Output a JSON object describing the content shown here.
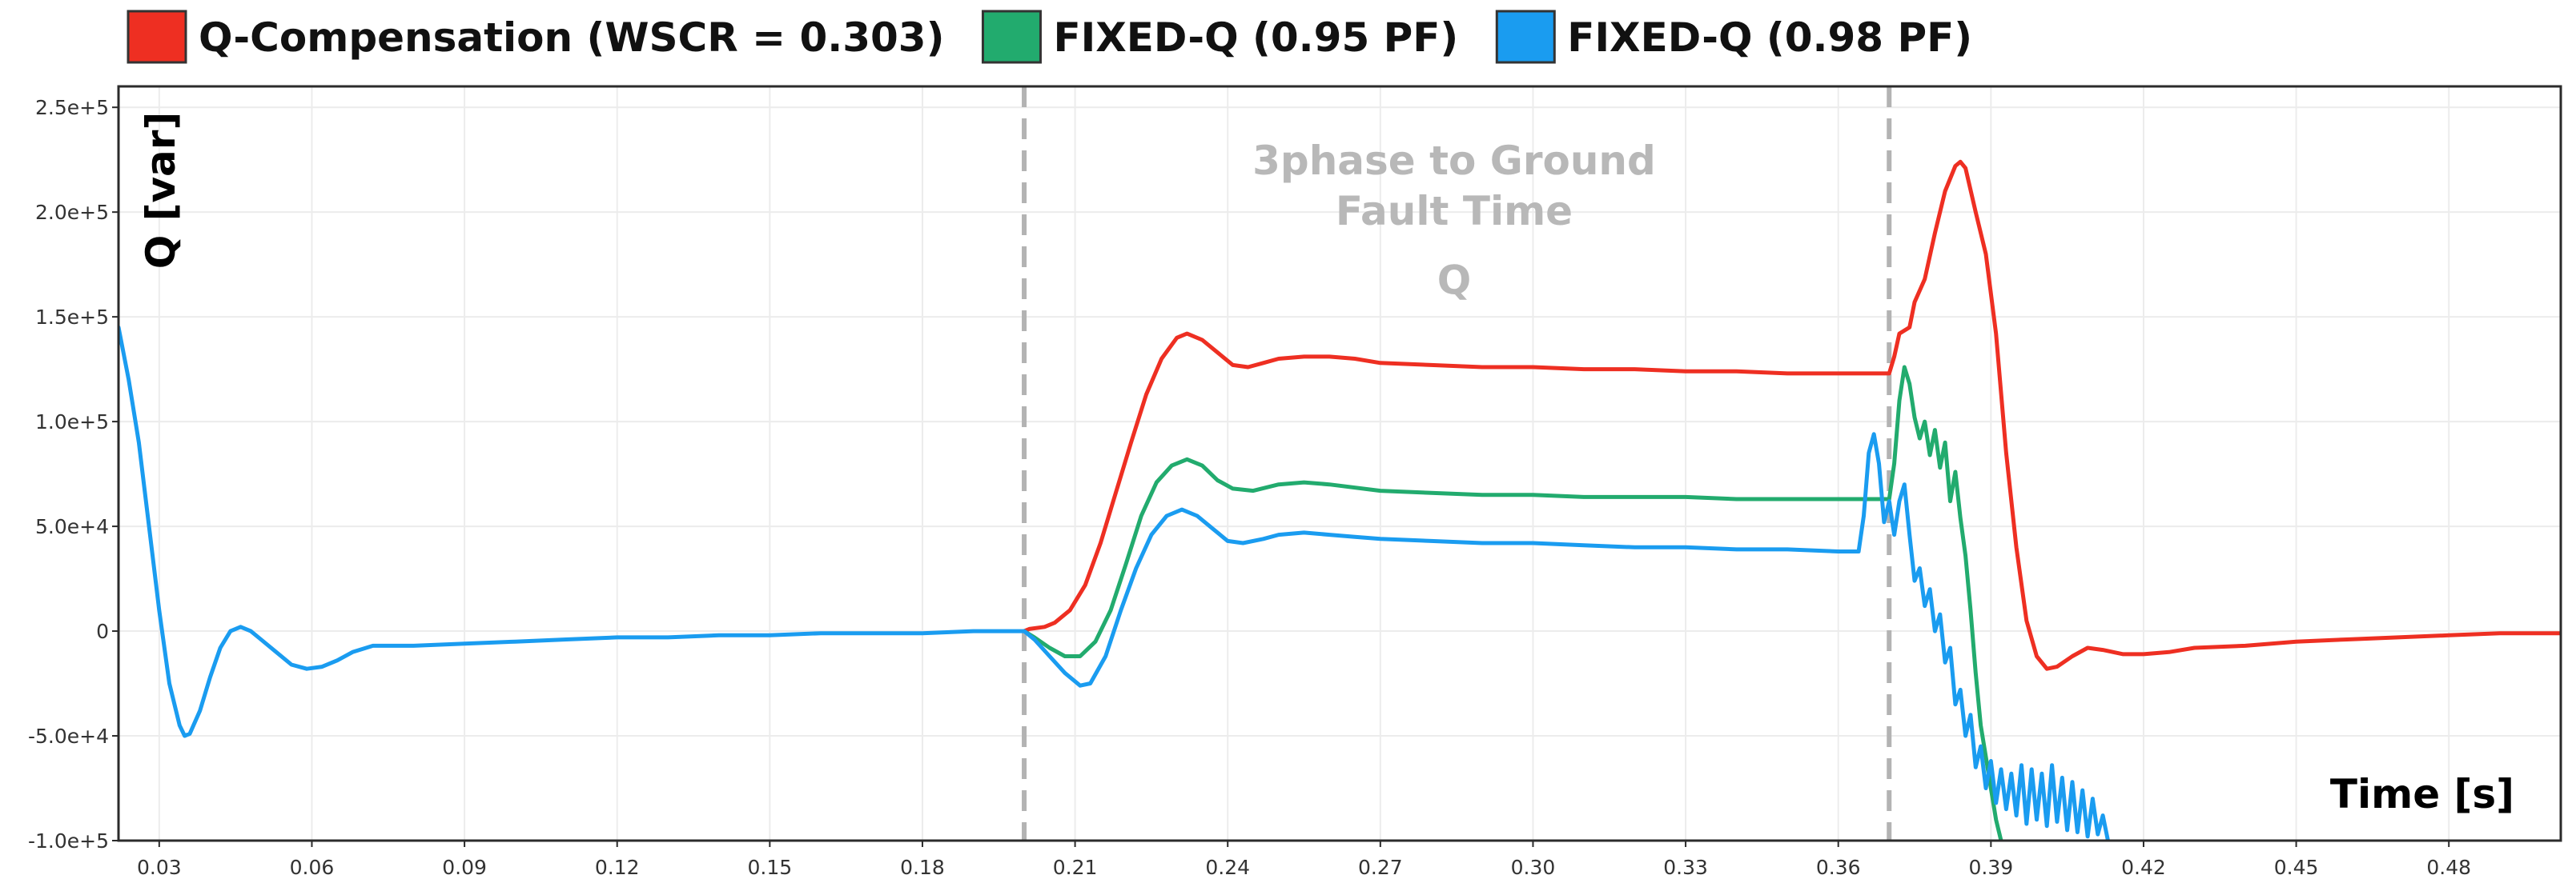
{
  "chart_data": {
    "type": "line",
    "title": "",
    "xlabel": "Time [s]",
    "ylabel": "Q [var]",
    "xlim": [
      0.022,
      0.502
    ],
    "ylim": [
      -100000,
      260000
    ],
    "x_ticks": [
      0.03,
      0.06,
      0.09,
      0.12,
      0.15,
      0.18,
      0.21,
      0.24,
      0.27,
      0.3,
      0.33,
      0.36,
      0.39,
      0.42,
      0.45,
      0.48
    ],
    "x_tick_labels": [
      "0.03",
      "0.06",
      "0.09",
      "0.12",
      "0.15",
      "0.18",
      "0.21",
      "0.24",
      "0.27",
      "0.30",
      "0.33",
      "0.36",
      "0.39",
      "0.42",
      "0.45",
      "0.48"
    ],
    "y_ticks": [
      -100000,
      -50000,
      0,
      50000,
      100000,
      150000,
      200000,
      250000
    ],
    "y_tick_labels": [
      "-1.0e+5",
      "-5.0e+4",
      "0",
      "5.0e+4",
      "1.0e+5",
      "1.5e+5",
      "2.0e+5",
      "2.5e+5"
    ],
    "grid": true,
    "legend_position": "top",
    "annotation": {
      "lines": [
        "3phase to Ground",
        "Fault Time"
      ],
      "sub": "Q",
      "x": 0.2845,
      "y": [
        218000,
        194000,
        161000
      ]
    },
    "vlines": [
      {
        "x": 0.2,
        "style": "dashed",
        "color": "#b3b3b3"
      },
      {
        "x": 0.37,
        "style": "dashed",
        "color": "#b3b3b3"
      }
    ],
    "series": [
      {
        "name": "Q-Compensation (WSCR = 0.303)",
        "color": "#ee2f22",
        "points": [
          [
            0.2,
            0
          ],
          [
            0.201,
            1000
          ],
          [
            0.204,
            2000
          ],
          [
            0.206,
            4000
          ],
          [
            0.209,
            10000
          ],
          [
            0.212,
            22000
          ],
          [
            0.215,
            42000
          ],
          [
            0.218,
            66000
          ],
          [
            0.221,
            90000
          ],
          [
            0.224,
            113000
          ],
          [
            0.227,
            130000
          ],
          [
            0.23,
            140000
          ],
          [
            0.232,
            142000
          ],
          [
            0.235,
            139000
          ],
          [
            0.238,
            133000
          ],
          [
            0.241,
            127000
          ],
          [
            0.244,
            126000
          ],
          [
            0.247,
            128000
          ],
          [
            0.25,
            130000
          ],
          [
            0.255,
            131000
          ],
          [
            0.26,
            131000
          ],
          [
            0.265,
            130000
          ],
          [
            0.27,
            128000
          ],
          [
            0.28,
            127000
          ],
          [
            0.29,
            126000
          ],
          [
            0.3,
            126000
          ],
          [
            0.31,
            125000
          ],
          [
            0.32,
            125000
          ],
          [
            0.33,
            124000
          ],
          [
            0.34,
            124000
          ],
          [
            0.35,
            123000
          ],
          [
            0.36,
            123000
          ],
          [
            0.37,
            123000
          ],
          [
            0.371,
            131000
          ],
          [
            0.372,
            142000
          ],
          [
            0.374,
            145000
          ],
          [
            0.375,
            157000
          ],
          [
            0.377,
            168000
          ],
          [
            0.379,
            190000
          ],
          [
            0.381,
            210000
          ],
          [
            0.383,
            222000
          ],
          [
            0.384,
            224000
          ],
          [
            0.385,
            221000
          ],
          [
            0.387,
            200000
          ],
          [
            0.389,
            180000
          ],
          [
            0.391,
            142000
          ],
          [
            0.393,
            85000
          ],
          [
            0.395,
            40000
          ],
          [
            0.397,
            5000
          ],
          [
            0.399,
            -12000
          ],
          [
            0.401,
            -18000
          ],
          [
            0.403,
            -17000
          ],
          [
            0.406,
            -12000
          ],
          [
            0.409,
            -8000
          ],
          [
            0.412,
            -9000
          ],
          [
            0.416,
            -11000
          ],
          [
            0.42,
            -11000
          ],
          [
            0.425,
            -10000
          ],
          [
            0.43,
            -8000
          ],
          [
            0.44,
            -7000
          ],
          [
            0.45,
            -5000
          ],
          [
            0.46,
            -4000
          ],
          [
            0.47,
            -3000
          ],
          [
            0.48,
            -2000
          ],
          [
            0.49,
            -1000
          ],
          [
            0.502,
            -1000
          ]
        ]
      },
      {
        "name": "FIXED-Q (0.95 PF)",
        "color": "#22ab6e",
        "points": [
          [
            0.2,
            0
          ],
          [
            0.202,
            -3000
          ],
          [
            0.205,
            -8000
          ],
          [
            0.208,
            -12000
          ],
          [
            0.211,
            -12000
          ],
          [
            0.214,
            -5000
          ],
          [
            0.217,
            10000
          ],
          [
            0.22,
            32000
          ],
          [
            0.223,
            55000
          ],
          [
            0.226,
            71000
          ],
          [
            0.229,
            79000
          ],
          [
            0.232,
            82000
          ],
          [
            0.235,
            79000
          ],
          [
            0.238,
            72000
          ],
          [
            0.241,
            68000
          ],
          [
            0.245,
            67000
          ],
          [
            0.25,
            70000
          ],
          [
            0.255,
            71000
          ],
          [
            0.26,
            70000
          ],
          [
            0.27,
            67000
          ],
          [
            0.28,
            66000
          ],
          [
            0.29,
            65000
          ],
          [
            0.3,
            65000
          ],
          [
            0.31,
            64000
          ],
          [
            0.32,
            64000
          ],
          [
            0.33,
            64000
          ],
          [
            0.34,
            63000
          ],
          [
            0.35,
            63000
          ],
          [
            0.36,
            63000
          ],
          [
            0.37,
            63000
          ],
          [
            0.371,
            80000
          ],
          [
            0.372,
            110000
          ],
          [
            0.373,
            126000
          ],
          [
            0.374,
            118000
          ],
          [
            0.375,
            102000
          ],
          [
            0.376,
            92000
          ],
          [
            0.377,
            100000
          ],
          [
            0.378,
            84000
          ],
          [
            0.379,
            96000
          ],
          [
            0.38,
            78000
          ],
          [
            0.381,
            90000
          ],
          [
            0.382,
            62000
          ],
          [
            0.383,
            76000
          ],
          [
            0.384,
            54000
          ],
          [
            0.385,
            36000
          ],
          [
            0.386,
            10000
          ],
          [
            0.387,
            -20000
          ],
          [
            0.388,
            -45000
          ],
          [
            0.389,
            -60000
          ],
          [
            0.39,
            -75000
          ],
          [
            0.391,
            -90000
          ],
          [
            0.392,
            -100000
          ]
        ]
      },
      {
        "name": "FIXED-Q (0.98 PF)",
        "color": "#1a9cf0",
        "points": [
          [
            0.022,
            145000
          ],
          [
            0.024,
            120000
          ],
          [
            0.026,
            90000
          ],
          [
            0.028,
            50000
          ],
          [
            0.03,
            10000
          ],
          [
            0.032,
            -25000
          ],
          [
            0.034,
            -45000
          ],
          [
            0.035,
            -50000
          ],
          [
            0.036,
            -49000
          ],
          [
            0.038,
            -38000
          ],
          [
            0.04,
            -22000
          ],
          [
            0.042,
            -8000
          ],
          [
            0.044,
            0
          ],
          [
            0.046,
            2000
          ],
          [
            0.048,
            0
          ],
          [
            0.05,
            -4000
          ],
          [
            0.053,
            -10000
          ],
          [
            0.056,
            -16000
          ],
          [
            0.059,
            -18000
          ],
          [
            0.062,
            -17000
          ],
          [
            0.065,
            -14000
          ],
          [
            0.068,
            -10000
          ],
          [
            0.072,
            -7000
          ],
          [
            0.08,
            -7000
          ],
          [
            0.09,
            -6000
          ],
          [
            0.1,
            -5000
          ],
          [
            0.11,
            -4000
          ],
          [
            0.12,
            -3000
          ],
          [
            0.13,
            -3000
          ],
          [
            0.14,
            -2000
          ],
          [
            0.15,
            -2000
          ],
          [
            0.16,
            -1000
          ],
          [
            0.17,
            -1000
          ],
          [
            0.18,
            -1000
          ],
          [
            0.19,
            0
          ],
          [
            0.2,
            0
          ],
          [
            0.202,
            -4000
          ],
          [
            0.205,
            -12000
          ],
          [
            0.208,
            -20000
          ],
          [
            0.211,
            -26000
          ],
          [
            0.213,
            -25000
          ],
          [
            0.216,
            -12000
          ],
          [
            0.219,
            10000
          ],
          [
            0.222,
            30000
          ],
          [
            0.225,
            46000
          ],
          [
            0.228,
            55000
          ],
          [
            0.231,
            58000
          ],
          [
            0.234,
            55000
          ],
          [
            0.237,
            49000
          ],
          [
            0.24,
            43000
          ],
          [
            0.243,
            42000
          ],
          [
            0.247,
            44000
          ],
          [
            0.25,
            46000
          ],
          [
            0.255,
            47000
          ],
          [
            0.26,
            46000
          ],
          [
            0.265,
            45000
          ],
          [
            0.27,
            44000
          ],
          [
            0.28,
            43000
          ],
          [
            0.29,
            42000
          ],
          [
            0.3,
            42000
          ],
          [
            0.31,
            41000
          ],
          [
            0.32,
            40000
          ],
          [
            0.33,
            40000
          ],
          [
            0.34,
            39000
          ],
          [
            0.35,
            39000
          ],
          [
            0.36,
            38000
          ],
          [
            0.364,
            38000
          ],
          [
            0.365,
            55000
          ],
          [
            0.366,
            85000
          ],
          [
            0.367,
            94000
          ],
          [
            0.368,
            80000
          ],
          [
            0.369,
            52000
          ],
          [
            0.37,
            62000
          ],
          [
            0.371,
            46000
          ],
          [
            0.372,
            62000
          ],
          [
            0.373,
            70000
          ],
          [
            0.374,
            46000
          ],
          [
            0.375,
            24000
          ],
          [
            0.376,
            30000
          ],
          [
            0.377,
            12000
          ],
          [
            0.378,
            20000
          ],
          [
            0.379,
            0
          ],
          [
            0.38,
            8000
          ],
          [
            0.381,
            -15000
          ],
          [
            0.382,
            -8000
          ],
          [
            0.383,
            -35000
          ],
          [
            0.384,
            -28000
          ],
          [
            0.385,
            -50000
          ],
          [
            0.386,
            -40000
          ],
          [
            0.387,
            -65000
          ],
          [
            0.388,
            -55000
          ],
          [
            0.389,
            -75000
          ],
          [
            0.39,
            -62000
          ],
          [
            0.391,
            -82000
          ],
          [
            0.392,
            -66000
          ],
          [
            0.393,
            -85000
          ],
          [
            0.394,
            -68000
          ],
          [
            0.395,
            -88000
          ],
          [
            0.396,
            -64000
          ],
          [
            0.397,
            -92000
          ],
          [
            0.398,
            -66000
          ],
          [
            0.399,
            -90000
          ],
          [
            0.4,
            -68000
          ],
          [
            0.401,
            -93000
          ],
          [
            0.402,
            -64000
          ],
          [
            0.403,
            -91000
          ],
          [
            0.404,
            -70000
          ],
          [
            0.405,
            -95000
          ],
          [
            0.406,
            -72000
          ],
          [
            0.407,
            -96000
          ],
          [
            0.408,
            -76000
          ],
          [
            0.409,
            -98000
          ],
          [
            0.41,
            -80000
          ],
          [
            0.411,
            -97000
          ],
          [
            0.412,
            -88000
          ],
          [
            0.413,
            -100000
          ]
        ]
      }
    ]
  }
}
